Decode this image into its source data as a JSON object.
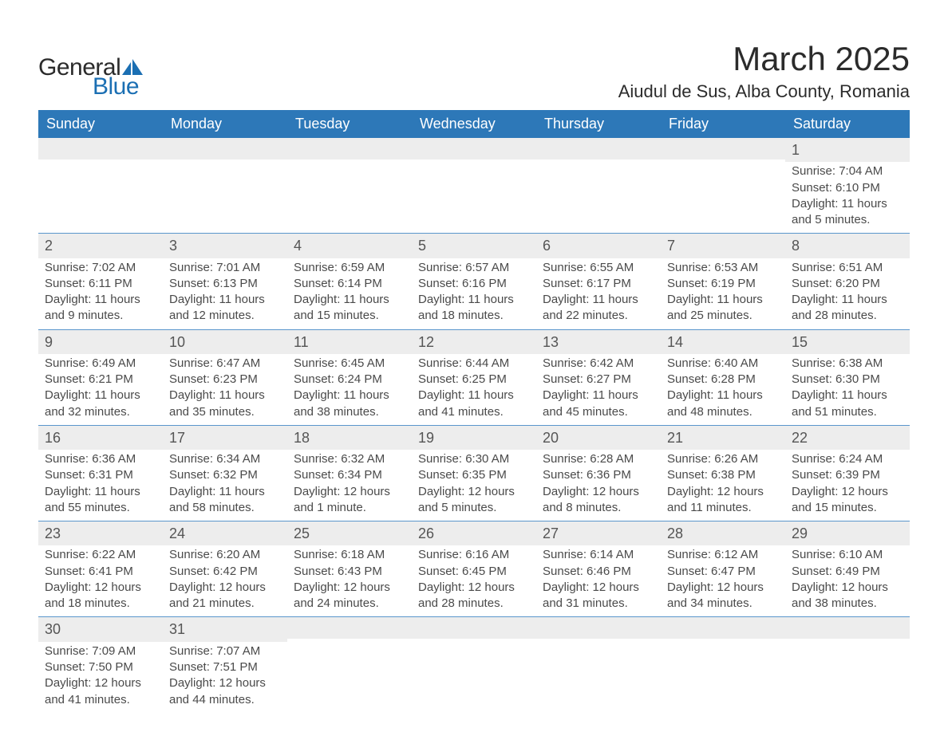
{
  "logo": {
    "general": "General",
    "blue": "Blue"
  },
  "title": "March 2025",
  "location": "Aiudul de Sus, Alba County, Romania",
  "colors": {
    "header_bg": "#2d78b8",
    "header_text": "#ffffff",
    "daynum_bg": "#ededed",
    "week_border": "#5a96cc",
    "body_text": "#4a4a4a",
    "logo_blue": "#1b6fb3"
  },
  "day_names": [
    "Sunday",
    "Monday",
    "Tuesday",
    "Wednesday",
    "Thursday",
    "Friday",
    "Saturday"
  ],
  "weeks": [
    [
      null,
      null,
      null,
      null,
      null,
      null,
      {
        "n": "1",
        "sr": "Sunrise: 7:04 AM",
        "ss": "Sunset: 6:10 PM",
        "d1": "Daylight: 11 hours",
        "d2": "and 5 minutes."
      }
    ],
    [
      {
        "n": "2",
        "sr": "Sunrise: 7:02 AM",
        "ss": "Sunset: 6:11 PM",
        "d1": "Daylight: 11 hours",
        "d2": "and 9 minutes."
      },
      {
        "n": "3",
        "sr": "Sunrise: 7:01 AM",
        "ss": "Sunset: 6:13 PM",
        "d1": "Daylight: 11 hours",
        "d2": "and 12 minutes."
      },
      {
        "n": "4",
        "sr": "Sunrise: 6:59 AM",
        "ss": "Sunset: 6:14 PM",
        "d1": "Daylight: 11 hours",
        "d2": "and 15 minutes."
      },
      {
        "n": "5",
        "sr": "Sunrise: 6:57 AM",
        "ss": "Sunset: 6:16 PM",
        "d1": "Daylight: 11 hours",
        "d2": "and 18 minutes."
      },
      {
        "n": "6",
        "sr": "Sunrise: 6:55 AM",
        "ss": "Sunset: 6:17 PM",
        "d1": "Daylight: 11 hours",
        "d2": "and 22 minutes."
      },
      {
        "n": "7",
        "sr": "Sunrise: 6:53 AM",
        "ss": "Sunset: 6:19 PM",
        "d1": "Daylight: 11 hours",
        "d2": "and 25 minutes."
      },
      {
        "n": "8",
        "sr": "Sunrise: 6:51 AM",
        "ss": "Sunset: 6:20 PM",
        "d1": "Daylight: 11 hours",
        "d2": "and 28 minutes."
      }
    ],
    [
      {
        "n": "9",
        "sr": "Sunrise: 6:49 AM",
        "ss": "Sunset: 6:21 PM",
        "d1": "Daylight: 11 hours",
        "d2": "and 32 minutes."
      },
      {
        "n": "10",
        "sr": "Sunrise: 6:47 AM",
        "ss": "Sunset: 6:23 PM",
        "d1": "Daylight: 11 hours",
        "d2": "and 35 minutes."
      },
      {
        "n": "11",
        "sr": "Sunrise: 6:45 AM",
        "ss": "Sunset: 6:24 PM",
        "d1": "Daylight: 11 hours",
        "d2": "and 38 minutes."
      },
      {
        "n": "12",
        "sr": "Sunrise: 6:44 AM",
        "ss": "Sunset: 6:25 PM",
        "d1": "Daylight: 11 hours",
        "d2": "and 41 minutes."
      },
      {
        "n": "13",
        "sr": "Sunrise: 6:42 AM",
        "ss": "Sunset: 6:27 PM",
        "d1": "Daylight: 11 hours",
        "d2": "and 45 minutes."
      },
      {
        "n": "14",
        "sr": "Sunrise: 6:40 AM",
        "ss": "Sunset: 6:28 PM",
        "d1": "Daylight: 11 hours",
        "d2": "and 48 minutes."
      },
      {
        "n": "15",
        "sr": "Sunrise: 6:38 AM",
        "ss": "Sunset: 6:30 PM",
        "d1": "Daylight: 11 hours",
        "d2": "and 51 minutes."
      }
    ],
    [
      {
        "n": "16",
        "sr": "Sunrise: 6:36 AM",
        "ss": "Sunset: 6:31 PM",
        "d1": "Daylight: 11 hours",
        "d2": "and 55 minutes."
      },
      {
        "n": "17",
        "sr": "Sunrise: 6:34 AM",
        "ss": "Sunset: 6:32 PM",
        "d1": "Daylight: 11 hours",
        "d2": "and 58 minutes."
      },
      {
        "n": "18",
        "sr": "Sunrise: 6:32 AM",
        "ss": "Sunset: 6:34 PM",
        "d1": "Daylight: 12 hours",
        "d2": "and 1 minute."
      },
      {
        "n": "19",
        "sr": "Sunrise: 6:30 AM",
        "ss": "Sunset: 6:35 PM",
        "d1": "Daylight: 12 hours",
        "d2": "and 5 minutes."
      },
      {
        "n": "20",
        "sr": "Sunrise: 6:28 AM",
        "ss": "Sunset: 6:36 PM",
        "d1": "Daylight: 12 hours",
        "d2": "and 8 minutes."
      },
      {
        "n": "21",
        "sr": "Sunrise: 6:26 AM",
        "ss": "Sunset: 6:38 PM",
        "d1": "Daylight: 12 hours",
        "d2": "and 11 minutes."
      },
      {
        "n": "22",
        "sr": "Sunrise: 6:24 AM",
        "ss": "Sunset: 6:39 PM",
        "d1": "Daylight: 12 hours",
        "d2": "and 15 minutes."
      }
    ],
    [
      {
        "n": "23",
        "sr": "Sunrise: 6:22 AM",
        "ss": "Sunset: 6:41 PM",
        "d1": "Daylight: 12 hours",
        "d2": "and 18 minutes."
      },
      {
        "n": "24",
        "sr": "Sunrise: 6:20 AM",
        "ss": "Sunset: 6:42 PM",
        "d1": "Daylight: 12 hours",
        "d2": "and 21 minutes."
      },
      {
        "n": "25",
        "sr": "Sunrise: 6:18 AM",
        "ss": "Sunset: 6:43 PM",
        "d1": "Daylight: 12 hours",
        "d2": "and 24 minutes."
      },
      {
        "n": "26",
        "sr": "Sunrise: 6:16 AM",
        "ss": "Sunset: 6:45 PM",
        "d1": "Daylight: 12 hours",
        "d2": "and 28 minutes."
      },
      {
        "n": "27",
        "sr": "Sunrise: 6:14 AM",
        "ss": "Sunset: 6:46 PM",
        "d1": "Daylight: 12 hours",
        "d2": "and 31 minutes."
      },
      {
        "n": "28",
        "sr": "Sunrise: 6:12 AM",
        "ss": "Sunset: 6:47 PM",
        "d1": "Daylight: 12 hours",
        "d2": "and 34 minutes."
      },
      {
        "n": "29",
        "sr": "Sunrise: 6:10 AM",
        "ss": "Sunset: 6:49 PM",
        "d1": "Daylight: 12 hours",
        "d2": "and 38 minutes."
      }
    ],
    [
      {
        "n": "30",
        "sr": "Sunrise: 7:09 AM",
        "ss": "Sunset: 7:50 PM",
        "d1": "Daylight: 12 hours",
        "d2": "and 41 minutes."
      },
      {
        "n": "31",
        "sr": "Sunrise: 7:07 AM",
        "ss": "Sunset: 7:51 PM",
        "d1": "Daylight: 12 hours",
        "d2": "and 44 minutes."
      },
      null,
      null,
      null,
      null,
      null
    ]
  ]
}
